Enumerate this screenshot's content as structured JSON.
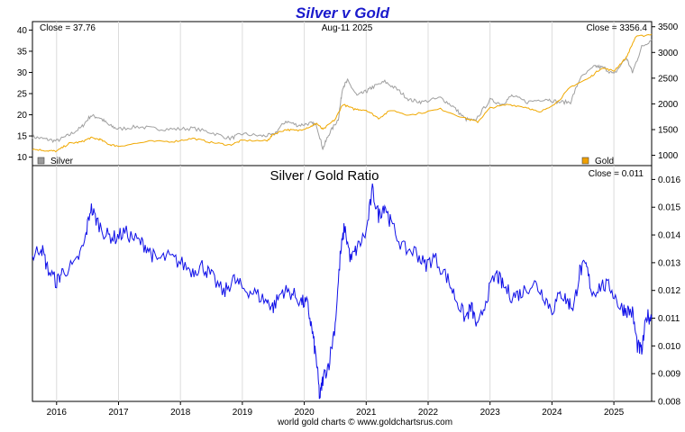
{
  "chart_data": [
    {
      "type": "line",
      "title": "Silver v Gold",
      "date_label": "Aug-11  2025",
      "close_left": "Close = 37.76",
      "close_right": "Close = 3356.4",
      "legend": [
        "Silver",
        "Gold"
      ],
      "colors": {
        "title": "#1a1acc",
        "silver": "#a0a0a0",
        "gold": "#f0a800",
        "silver_legend": "#9a9a9a",
        "gold_legend": "#f0a000"
      },
      "ylim_left": [
        8,
        42
      ],
      "ylim_right": [
        800,
        3600
      ],
      "y_ticks_left": [
        10,
        15,
        20,
        25,
        30,
        35,
        40
      ],
      "y_ticks_right": [
        1000,
        1500,
        2000,
        2500,
        3000,
        3500
      ],
      "series": [
        {
          "name": "Silver",
          "axis": "left",
          "x": [
            2015.61,
            2015.8,
            2016.0,
            2016.2,
            2016.4,
            2016.55,
            2016.7,
            2016.85,
            2017.0,
            2017.3,
            2017.6,
            2017.9,
            2018.2,
            2018.5,
            2018.8,
            2019.0,
            2019.3,
            2019.5,
            2019.7,
            2019.9,
            2020.1,
            2020.2,
            2020.3,
            2020.4,
            2020.55,
            2020.62,
            2020.7,
            2020.85,
            2021.0,
            2021.1,
            2021.3,
            2021.5,
            2021.7,
            2021.9,
            2022.2,
            2022.4,
            2022.6,
            2022.75,
            2023.0,
            2023.2,
            2023.35,
            2023.6,
            2023.9,
            2024.1,
            2024.3,
            2024.45,
            2024.7,
            2024.85,
            2025.0,
            2025.2,
            2025.3,
            2025.45,
            2025.61
          ],
          "values": [
            14.8,
            14.3,
            13.8,
            15.2,
            17.0,
            19.8,
            19.3,
            17.5,
            16.6,
            17.2,
            16.7,
            16.6,
            16.8,
            15.8,
            14.4,
            15.5,
            15.0,
            15.2,
            18.5,
            17.5,
            18.0,
            17.5,
            12.0,
            15.5,
            19.0,
            26.5,
            28.0,
            24.5,
            25.5,
            26.5,
            27.8,
            26.0,
            23.5,
            23.0,
            24.0,
            22.0,
            19.0,
            18.5,
            23.5,
            22.5,
            24.5,
            23.0,
            23.8,
            23.0,
            23.0,
            28.5,
            31.5,
            31.0,
            29.5,
            33.5,
            30.0,
            36.0,
            37.76
          ]
        },
        {
          "name": "Gold",
          "axis": "right",
          "x": [
            2015.61,
            2015.85,
            2016.0,
            2016.2,
            2016.4,
            2016.55,
            2016.7,
            2016.85,
            2017.0,
            2017.5,
            2017.9,
            2018.2,
            2018.5,
            2018.8,
            2019.0,
            2019.4,
            2019.5,
            2019.7,
            2019.9,
            2020.1,
            2020.2,
            2020.3,
            2020.5,
            2020.62,
            2020.8,
            2021.0,
            2021.2,
            2021.4,
            2021.7,
            2022.2,
            2022.6,
            2022.8,
            2023.0,
            2023.3,
            2023.6,
            2023.8,
            2024.1,
            2024.3,
            2024.6,
            2024.8,
            2025.0,
            2025.2,
            2025.35,
            2025.61
          ],
          "values": [
            1120,
            1090,
            1080,
            1230,
            1260,
            1340,
            1310,
            1210,
            1180,
            1270,
            1270,
            1330,
            1250,
            1200,
            1290,
            1280,
            1410,
            1500,
            1480,
            1560,
            1620,
            1500,
            1700,
            1990,
            1900,
            1880,
            1720,
            1880,
            1780,
            1900,
            1720,
            1650,
            1920,
            1990,
            1930,
            1830,
            2050,
            2330,
            2500,
            2700,
            2640,
            2900,
            3300,
            3356.4
          ]
        }
      ]
    },
    {
      "type": "line",
      "title": "Silver  /  Gold Ratio",
      "close_label": "Close = 0.011",
      "colors": {
        "line": "#1010e8"
      },
      "ylim": [
        0.008,
        0.0165
      ],
      "y_ticks": [
        "0.016",
        "0.015",
        "0.014",
        "0.013",
        "0.012",
        "0.011",
        "0.010",
        "0.009",
        "0.008"
      ],
      "x_ticks": [
        "2016",
        "2017",
        "2018",
        "2019",
        "2020",
        "2021",
        "2022",
        "2023",
        "2024",
        "2025"
      ],
      "series": [
        {
          "name": "Silver / Gold",
          "x": [
            2015.61,
            2015.75,
            2015.85,
            2016.0,
            2016.1,
            2016.3,
            2016.45,
            2016.55,
            2016.65,
            2016.8,
            2016.95,
            2017.1,
            2017.3,
            2017.45,
            2017.6,
            2017.8,
            2018.0,
            2018.2,
            2018.35,
            2018.5,
            2018.7,
            2018.85,
            2019.0,
            2019.2,
            2019.4,
            2019.5,
            2019.65,
            2019.8,
            2019.95,
            2020.05,
            2020.13,
            2020.2,
            2020.25,
            2020.3,
            2020.4,
            2020.5,
            2020.58,
            2020.65,
            2020.75,
            2020.85,
            2021.0,
            2021.1,
            2021.2,
            2021.3,
            2021.4,
            2021.6,
            2021.8,
            2021.95,
            2022.1,
            2022.3,
            2022.45,
            2022.6,
            2022.7,
            2022.8,
            2022.95,
            2023.1,
            2023.2,
            2023.35,
            2023.5,
            2023.7,
            2023.85,
            2024.0,
            2024.15,
            2024.25,
            2024.35,
            2024.45,
            2024.55,
            2024.65,
            2024.8,
            2024.95,
            2025.1,
            2025.2,
            2025.3,
            2025.38,
            2025.45,
            2025.53,
            2025.61
          ],
          "values": [
            0.0132,
            0.0136,
            0.0128,
            0.0123,
            0.0127,
            0.0129,
            0.0137,
            0.015,
            0.0145,
            0.014,
            0.0139,
            0.0141,
            0.0138,
            0.0136,
            0.0131,
            0.0132,
            0.013,
            0.0127,
            0.0129,
            0.0125,
            0.0119,
            0.0124,
            0.0121,
            0.0119,
            0.0116,
            0.0114,
            0.012,
            0.0119,
            0.0116,
            0.0115,
            0.0105,
            0.0094,
            0.0081,
            0.0088,
            0.0094,
            0.0108,
            0.0132,
            0.0143,
            0.0131,
            0.0135,
            0.0141,
            0.0156,
            0.0147,
            0.0151,
            0.0144,
            0.0135,
            0.0134,
            0.0129,
            0.0132,
            0.0125,
            0.0117,
            0.011,
            0.0114,
            0.0106,
            0.0118,
            0.0126,
            0.0122,
            0.0118,
            0.0119,
            0.0123,
            0.0119,
            0.0113,
            0.0119,
            0.0116,
            0.0114,
            0.0127,
            0.0129,
            0.0119,
            0.0122,
            0.0121,
            0.0114,
            0.0113,
            0.0112,
            0.01,
            0.0098,
            0.0111,
            0.011
          ]
        }
      ]
    }
  ],
  "footer": "world gold charts © www.goldchartsrus.com"
}
